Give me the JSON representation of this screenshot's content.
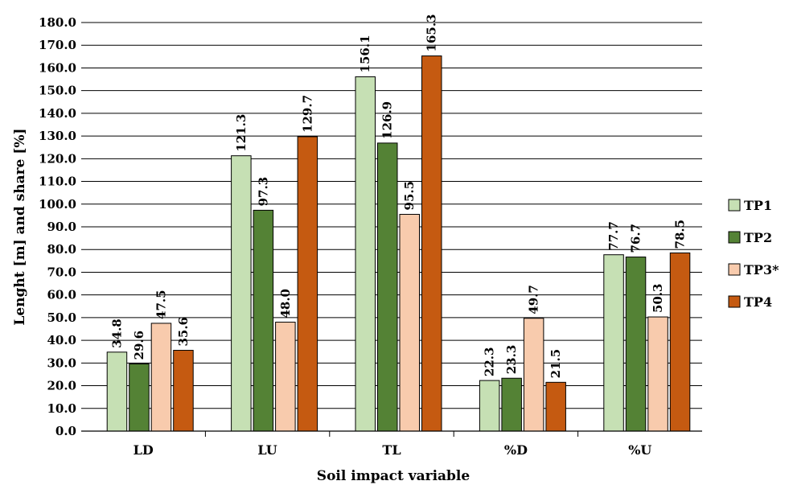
{
  "chart_data": {
    "type": "bar",
    "title": "",
    "xlabel": "Soil impact variable",
    "ylabel": "Lenght [m] and share [%]",
    "categories": [
      "LD",
      "LU",
      "TL",
      "%D",
      "%U"
    ],
    "series": [
      {
        "name": "TP1",
        "color": "#c6e0b4",
        "values": [
          34.8,
          121.3,
          156.1,
          22.3,
          77.7
        ]
      },
      {
        "name": "TP2",
        "color": "#548235",
        "values": [
          29.6,
          97.3,
          126.9,
          23.3,
          76.7
        ]
      },
      {
        "name": "TP3*",
        "color": "#f8cbad",
        "values": [
          47.5,
          48.0,
          95.5,
          49.7,
          50.3
        ]
      },
      {
        "name": "TP4",
        "color": "#c55a11",
        "values": [
          35.6,
          129.7,
          165.3,
          21.5,
          78.5
        ]
      }
    ],
    "ylim": [
      0,
      180
    ],
    "ytick_step": 10,
    "ytick_decimals": 1,
    "grid": true,
    "legend": "right"
  }
}
